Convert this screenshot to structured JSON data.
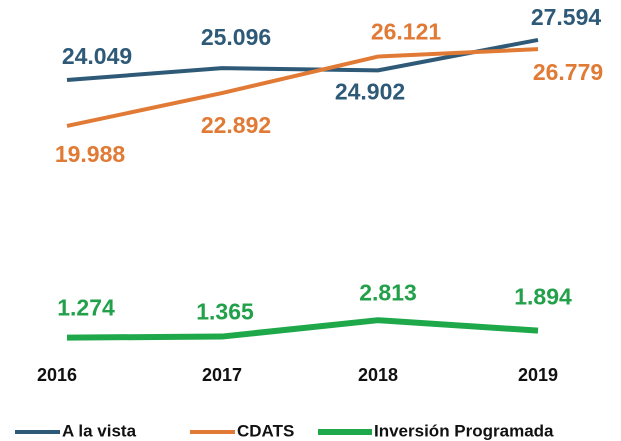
{
  "chart_data": {
    "type": "line",
    "categories": [
      "2016",
      "2017",
      "2018",
      "2019"
    ],
    "series": [
      {
        "name": "A la vista",
        "color": "#2e5a78",
        "values": [
          24.049,
          25.096,
          24.902,
          27.594
        ]
      },
      {
        "name": "CDATS",
        "color": "#e07a35",
        "values": [
          19.988,
          22.892,
          26.121,
          26.779
        ]
      },
      {
        "name": "Inversión Programada",
        "color": "#1fa84a",
        "values": [
          1.274,
          1.365,
          2.813,
          1.894
        ]
      }
    ],
    "ylim": [
      0,
      29
    ]
  }
}
